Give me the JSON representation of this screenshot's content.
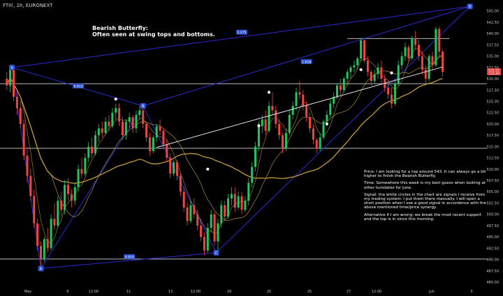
{
  "header": {
    "symbol": "FTII!, 1h, EURONEXT"
  },
  "annotations": {
    "title": "Bearish Butterfly:",
    "subtitle": "Often seen at swing tops and bottoms.",
    "notes": [
      "Price: I am looking for a top around 543. It can always go a bit higher to finish the Bearish Butterfly.",
      "Time: Somewhere this week is my best guess when looking at other turndates for June.",
      "Signal: the white circles in the chart are signals I receive from my trading system. I put them there manually. I will open a short position when I see a good signal in accordence with the above mentioned time/price synergy.",
      "Alternative if I am wrong: we break the most recent support and the top is in since this morning."
    ]
  },
  "chart_data": {
    "type": "candlestick",
    "price_labels": [
      "545.00",
      "542.50",
      "540.00",
      "537.50",
      "535.00",
      "532.50",
      "530.00",
      "527.50",
      "525.00",
      "522.50",
      "520.00",
      "517.50",
      "515.00",
      "512.50",
      "510.00",
      "507.50",
      "505.00",
      "502.50",
      "500.00",
      "497.50",
      "495.00",
      "492.50",
      "490.00",
      "487.50",
      "485.00"
    ],
    "ylim": [
      485.0,
      546.5
    ],
    "time_labels": [
      "May",
      "6",
      "12:00",
      "11",
      "13",
      "12:00",
      "18",
      "20",
      "25",
      "27",
      "12:00",
      "Jun",
      "3"
    ],
    "last_price": "531.55",
    "last_price_alt": "531.40",
    "colors": {
      "up": "#22c55e",
      "down": "#ef4444",
      "pattern": "#2b2bd1",
      "label_bg": "#2f55d4",
      "ma_fast": "#e1b24a",
      "ma_slow": "#c89b3c",
      "price_tag": "#e53935"
    },
    "horizontal_levels": [
      538.9,
      528.9,
      514.6,
      490.1
    ],
    "trendline": {
      "from": {
        "t": 44,
        "price": 514.8
      },
      "to": {
        "t": 128,
        "price": 532.6
      }
    },
    "pattern": {
      "points": [
        {
          "name": "X",
          "t": 1.5,
          "price": 532.5
        },
        {
          "name": "A",
          "t": 10,
          "price": 488.0
        },
        {
          "name": "B",
          "t": 40,
          "price": 524.0
        },
        {
          "name": "C",
          "t": 61.5,
          "price": 491.5
        },
        {
          "name": "D",
          "t": 136,
          "price": 546.0
        }
      ],
      "ratios": [
        {
          "label": "0.913",
          "t": 21,
          "price": 528.4
        },
        {
          "label": "0.910",
          "t": 36,
          "price": 490.6
        },
        {
          "label": "1.275",
          "t": 69,
          "price": 540.3
        },
        {
          "label": "1.618",
          "t": 88,
          "price": 533.8
        }
      ]
    },
    "signals": [
      {
        "t": 32,
        "price": 525.5
      },
      {
        "t": 59,
        "price": 510.0
      },
      {
        "t": 74,
        "price": 519.6
      },
      {
        "t": 77,
        "price": 527.0
      },
      {
        "t": 94,
        "price": 520.0
      },
      {
        "t": 104,
        "price": 532.0
      },
      {
        "t": 113,
        "price": 531.3
      }
    ],
    "ohlc": [
      [
        0,
        530,
        531.5,
        527.5,
        528.5
      ],
      [
        1,
        528.5,
        533,
        527,
        532
      ],
      [
        2,
        532,
        532.5,
        525,
        526
      ],
      [
        3,
        526,
        527.5,
        522,
        523.5
      ],
      [
        4,
        523.5,
        525,
        519,
        520
      ],
      [
        5,
        520,
        521,
        512,
        513
      ],
      [
        6,
        513,
        515,
        507,
        508.5
      ],
      [
        7,
        508.5,
        510,
        503,
        504
      ],
      [
        8,
        504,
        505.5,
        497,
        498
      ],
      [
        9,
        498,
        499,
        492,
        493
      ],
      [
        10,
        493,
        494,
        488.5,
        490
      ],
      [
        11,
        490,
        495,
        489.5,
        494.5
      ],
      [
        12,
        494.5,
        497,
        491.5,
        492.5
      ],
      [
        13,
        492.5,
        500,
        492,
        499
      ],
      [
        14,
        499,
        502.5,
        496.5,
        497.5
      ],
      [
        15,
        497.5,
        504,
        497,
        503
      ],
      [
        16,
        503,
        505,
        499.5,
        501
      ],
      [
        17,
        501,
        507.5,
        500,
        506.5
      ],
      [
        18,
        506.5,
        508,
        503,
        504.5
      ],
      [
        19,
        504.5,
        505.5,
        501.5,
        503
      ],
      [
        20,
        503,
        507,
        502,
        506
      ],
      [
        21,
        506,
        511,
        505,
        510
      ],
      [
        22,
        510,
        512.5,
        508,
        509
      ],
      [
        23,
        509,
        513.5,
        508.5,
        512.5
      ],
      [
        24,
        512.5,
        516,
        511.5,
        515
      ],
      [
        25,
        515,
        517,
        512.5,
        513.5
      ],
      [
        26,
        513.5,
        518.5,
        513,
        517.5
      ],
      [
        27,
        517.5,
        520,
        516,
        519
      ],
      [
        28,
        519,
        520.5,
        517,
        518
      ],
      [
        29,
        518,
        521.5,
        517.5,
        520.5
      ],
      [
        30,
        520.5,
        522,
        518.5,
        519.5
      ],
      [
        31,
        519.5,
        523.5,
        519,
        522.5
      ],
      [
        32,
        522.5,
        524.5,
        521,
        523.5
      ],
      [
        33,
        523.5,
        524.5,
        519.5,
        520.5
      ],
      [
        34,
        520.5,
        521.5,
        516.5,
        517.5
      ],
      [
        35,
        517.5,
        521,
        516.5,
        520.5
      ],
      [
        36,
        520.5,
        522.5,
        519,
        521.5
      ],
      [
        37,
        521.5,
        522,
        518,
        519
      ],
      [
        38,
        519,
        523,
        518,
        522
      ],
      [
        39,
        522,
        524,
        521,
        523
      ],
      [
        40,
        523,
        523.5,
        519,
        520
      ],
      [
        41,
        520,
        520.5,
        516,
        517
      ],
      [
        42,
        517,
        518,
        513,
        514
      ],
      [
        43,
        514,
        517.5,
        513.5,
        517
      ],
      [
        44,
        517,
        520,
        516,
        519.5
      ],
      [
        45,
        519.5,
        521,
        517.5,
        518.5
      ],
      [
        46,
        518.5,
        519,
        514.5,
        515.5
      ],
      [
        47,
        515.5,
        516.5,
        511.5,
        512.5
      ],
      [
        48,
        512.5,
        513.5,
        508,
        509
      ],
      [
        49,
        509,
        512,
        508.5,
        511.5
      ],
      [
        50,
        511.5,
        512,
        507.5,
        508.5
      ],
      [
        51,
        508.5,
        509,
        504,
        505
      ],
      [
        52,
        505,
        506,
        500.5,
        501.5
      ],
      [
        53,
        501.5,
        502.5,
        497.5,
        498.5
      ],
      [
        54,
        498.5,
        503,
        498,
        502
      ],
      [
        55,
        502,
        503.5,
        499,
        500
      ],
      [
        56,
        500,
        501,
        496.5,
        497.5
      ],
      [
        57,
        497.5,
        499,
        494,
        495
      ],
      [
        58,
        495,
        496,
        491,
        492
      ],
      [
        59,
        492,
        498,
        491.5,
        497
      ],
      [
        60,
        497,
        501,
        496,
        500
      ],
      [
        61,
        500,
        500.5,
        493,
        494
      ],
      [
        62,
        494,
        499,
        491.5,
        498
      ],
      [
        63,
        498,
        503,
        497,
        502
      ],
      [
        64,
        502,
        503,
        498.5,
        499.5
      ],
      [
        65,
        499.5,
        504.5,
        499,
        503.5
      ],
      [
        66,
        503.5,
        506,
        502,
        504.5
      ],
      [
        67,
        504.5,
        506,
        500.5,
        501.5
      ],
      [
        68,
        501.5,
        505,
        501,
        504
      ],
      [
        69,
        504,
        505,
        500,
        501
      ],
      [
        70,
        501,
        504,
        500.5,
        503
      ],
      [
        71,
        503,
        508,
        502,
        507
      ],
      [
        72,
        507,
        511.5,
        506,
        510.5
      ],
      [
        73,
        510.5,
        516,
        509.5,
        515
      ],
      [
        74,
        515,
        520.5,
        514,
        519.5
      ],
      [
        75,
        519.5,
        522,
        518,
        521
      ],
      [
        76,
        521,
        523,
        517.5,
        518.5
      ],
      [
        77,
        518.5,
        525,
        518,
        524
      ],
      [
        78,
        524,
        527,
        522,
        523
      ],
      [
        79,
        523,
        524,
        519,
        520
      ],
      [
        80,
        520,
        521,
        516.5,
        517.5
      ],
      [
        81,
        517.5,
        518,
        513.5,
        514.5
      ],
      [
        82,
        514.5,
        519,
        514,
        518
      ],
      [
        83,
        518,
        523,
        517.5,
        522
      ],
      [
        84,
        522,
        525,
        521,
        524
      ],
      [
        85,
        524,
        528,
        523,
        527
      ],
      [
        86,
        527,
        529.5,
        525.5,
        526.5
      ],
      [
        87,
        526.5,
        527.5,
        523,
        524
      ],
      [
        88,
        524,
        525,
        520.5,
        521.5
      ],
      [
        89,
        521.5,
        522.5,
        518,
        519
      ],
      [
        90,
        519,
        520,
        515.5,
        516.5
      ],
      [
        91,
        516.5,
        517,
        513.5,
        514.5
      ],
      [
        92,
        514.5,
        518,
        514,
        517
      ],
      [
        93,
        517,
        521,
        516.5,
        520.5
      ],
      [
        94,
        520.5,
        523,
        519.5,
        522
      ],
      [
        95,
        522,
        525.5,
        521.5,
        524.5
      ],
      [
        96,
        524.5,
        527,
        523.5,
        526
      ],
      [
        97,
        526,
        529,
        525.5,
        528.5
      ],
      [
        98,
        528.5,
        530,
        526.5,
        527.5
      ],
      [
        99,
        527.5,
        530.5,
        527,
        530
      ],
      [
        100,
        530,
        532,
        528.5,
        531.5
      ],
      [
        101,
        531.5,
        533,
        530,
        532.5
      ],
      [
        102,
        532.5,
        534,
        531.5,
        533
      ],
      [
        103,
        533,
        535,
        532,
        534.5
      ],
      [
        104,
        534.5,
        539,
        534,
        538.5
      ],
      [
        105,
        538.5,
        539,
        533.5,
        534
      ],
      [
        106,
        534,
        535,
        530.5,
        531.5
      ],
      [
        107,
        531.5,
        532,
        528.5,
        529.5
      ],
      [
        108,
        529.5,
        532,
        529,
        531
      ],
      [
        109,
        531,
        533.5,
        530,
        532.5
      ],
      [
        110,
        532.5,
        534,
        529,
        530
      ],
      [
        111,
        530,
        531,
        527,
        528
      ],
      [
        112,
        528,
        529,
        525.5,
        526.5
      ],
      [
        113,
        526.5,
        528,
        523.5,
        524.5
      ],
      [
        114,
        524.5,
        530,
        524,
        529
      ],
      [
        115,
        529,
        534,
        528.5,
        533
      ],
      [
        116,
        533,
        536,
        532,
        535
      ],
      [
        117,
        535,
        538,
        534,
        537
      ],
      [
        118,
        537,
        537.5,
        533.5,
        534.5
      ],
      [
        119,
        534.5,
        539.5,
        534,
        539
      ],
      [
        120,
        539,
        540.5,
        536.5,
        537.5
      ],
      [
        121,
        537.5,
        538.5,
        534,
        535
      ],
      [
        122,
        535,
        536,
        531,
        532
      ],
      [
        123,
        532,
        533,
        529,
        530
      ],
      [
        124,
        530,
        535.5,
        529.5,
        535
      ],
      [
        125,
        535,
        536,
        532,
        533
      ],
      [
        126,
        533,
        541.5,
        532.5,
        541
      ],
      [
        127,
        541,
        541.5,
        535,
        536
      ],
      [
        128,
        536,
        536.5,
        530.5,
        531.5
      ]
    ]
  }
}
